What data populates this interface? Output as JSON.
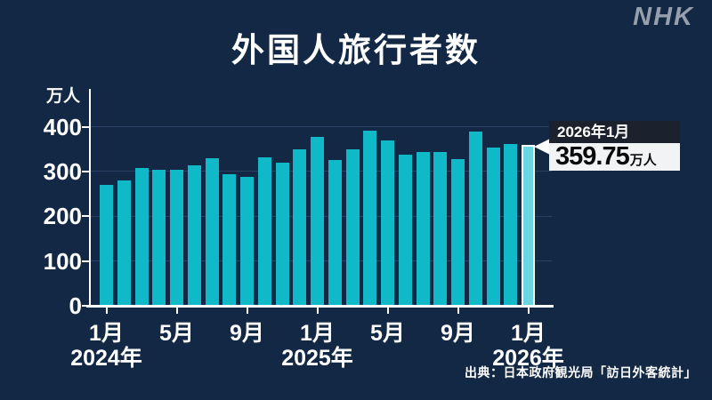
{
  "logo": {
    "text": "NHK"
  },
  "title": "外国人旅行者数",
  "source": "出典：日本政府観光局「訪日外客統計」",
  "callout": {
    "date": "2026年1月",
    "value": "359.75",
    "unit": "万人"
  },
  "chart_data": {
    "type": "bar",
    "title": "外国人旅行者数",
    "unit_label": "万人",
    "ylim": [
      0,
      400
    ],
    "yticks": [
      0,
      100,
      200,
      300,
      400
    ],
    "grid": true,
    "x": [
      "2024年1月",
      "2024年2月",
      "2024年3月",
      "2024年4月",
      "2024年5月",
      "2024年6月",
      "2024年7月",
      "2024年8月",
      "2024年9月",
      "2024年10月",
      "2024年11月",
      "2024年12月",
      "2025年1月",
      "2025年2月",
      "2025年3月",
      "2025年4月",
      "2025年5月",
      "2025年6月",
      "2025年7月",
      "2025年8月",
      "2025年9月",
      "2025年10月",
      "2025年11月",
      "2025年12月",
      "2026年1月"
    ],
    "values": [
      269,
      279,
      308,
      304,
      304,
      314,
      329,
      293,
      287,
      331,
      319,
      349,
      378,
      326,
      350,
      391,
      369,
      338,
      344,
      343,
      327,
      390,
      353,
      362,
      359.75
    ],
    "highlight_index": 24,
    "xticks": [
      {
        "index": 0,
        "month": "1月",
        "year": "2024年"
      },
      {
        "index": 4,
        "month": "5月"
      },
      {
        "index": 8,
        "month": "9月"
      },
      {
        "index": 12,
        "month": "1月",
        "year": "2025年"
      },
      {
        "index": 16,
        "month": "5月"
      },
      {
        "index": 20,
        "month": "9月"
      },
      {
        "index": 24,
        "month": "1月",
        "year": "2026年"
      }
    ],
    "colors": {
      "bar": "#0fb9c8",
      "highlight": "#6ad6e2",
      "background": "#122844"
    }
  }
}
